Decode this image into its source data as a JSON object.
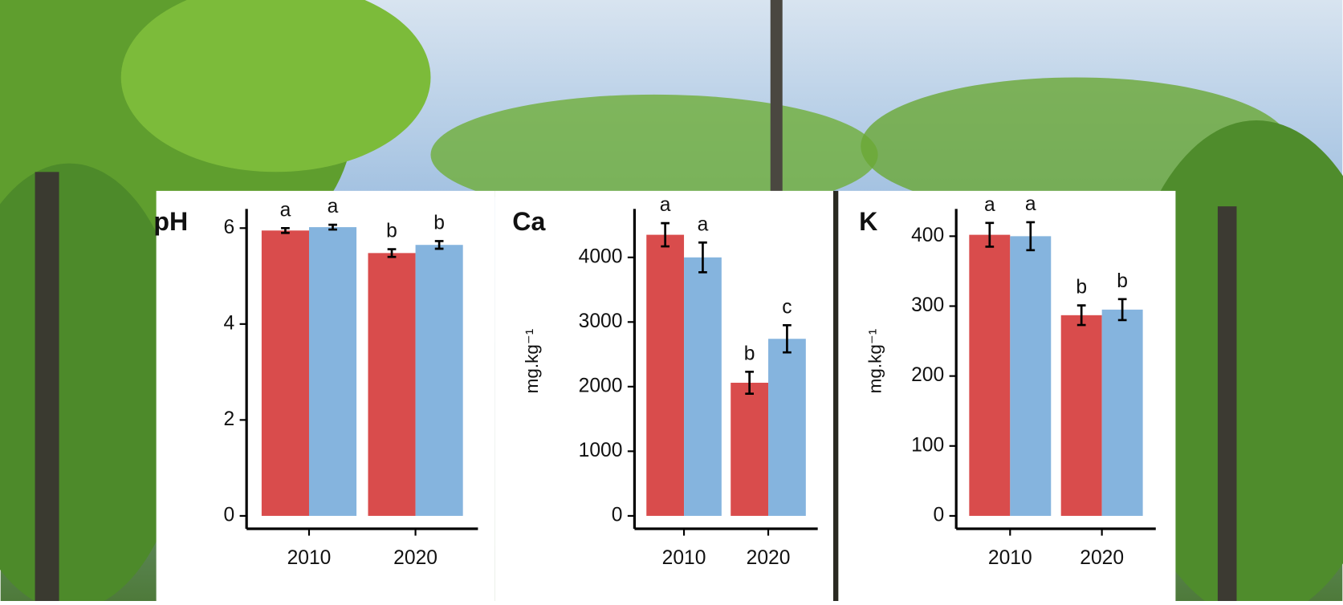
{
  "chart_data": [
    {
      "type": "bar",
      "title": "pH",
      "categories": [
        "2010",
        "2020"
      ],
      "series": [
        {
          "color": "#d94c4c",
          "values": [
            5.95,
            5.48
          ],
          "errors": [
            0.05,
            0.08
          ],
          "letters": [
            "a",
            "b"
          ]
        },
        {
          "color": "#85b4de",
          "values": [
            6.02,
            5.65
          ],
          "errors": [
            0.05,
            0.08
          ],
          "letters": [
            "a",
            "b"
          ]
        }
      ],
      "ylim": [
        0,
        6.4
      ],
      "yticks": [
        0,
        2,
        4,
        6
      ]
    },
    {
      "type": "bar",
      "title": "Ca",
      "y_label": "mg.kg⁻¹",
      "categories": [
        "2010",
        "2020"
      ],
      "series": [
        {
          "color": "#d94c4c",
          "values": [
            4350,
            2060
          ],
          "errors": [
            180,
            170
          ],
          "letters": [
            "a",
            "b"
          ]
        },
        {
          "color": "#85b4de",
          "values": [
            4000,
            2740
          ],
          "errors": [
            230,
            210
          ],
          "letters": [
            "a",
            "c"
          ]
        }
      ],
      "ylim": [
        0,
        4750
      ],
      "yticks": [
        0,
        1000,
        2000,
        3000,
        4000
      ]
    },
    {
      "type": "bar",
      "title": "K",
      "y_label": "mg.kg⁻¹",
      "categories": [
        "2010",
        "2020"
      ],
      "series": [
        {
          "color": "#d94c4c",
          "values": [
            402,
            287
          ],
          "errors": [
            17,
            14
          ],
          "letters": [
            "a",
            "b"
          ]
        },
        {
          "color": "#85b4de",
          "values": [
            400,
            295
          ],
          "errors": [
            20,
            15
          ],
          "letters": [
            "a",
            "b"
          ]
        }
      ],
      "ylim": [
        0,
        439
      ],
      "yticks": [
        0,
        100,
        200,
        300,
        400
      ]
    }
  ]
}
